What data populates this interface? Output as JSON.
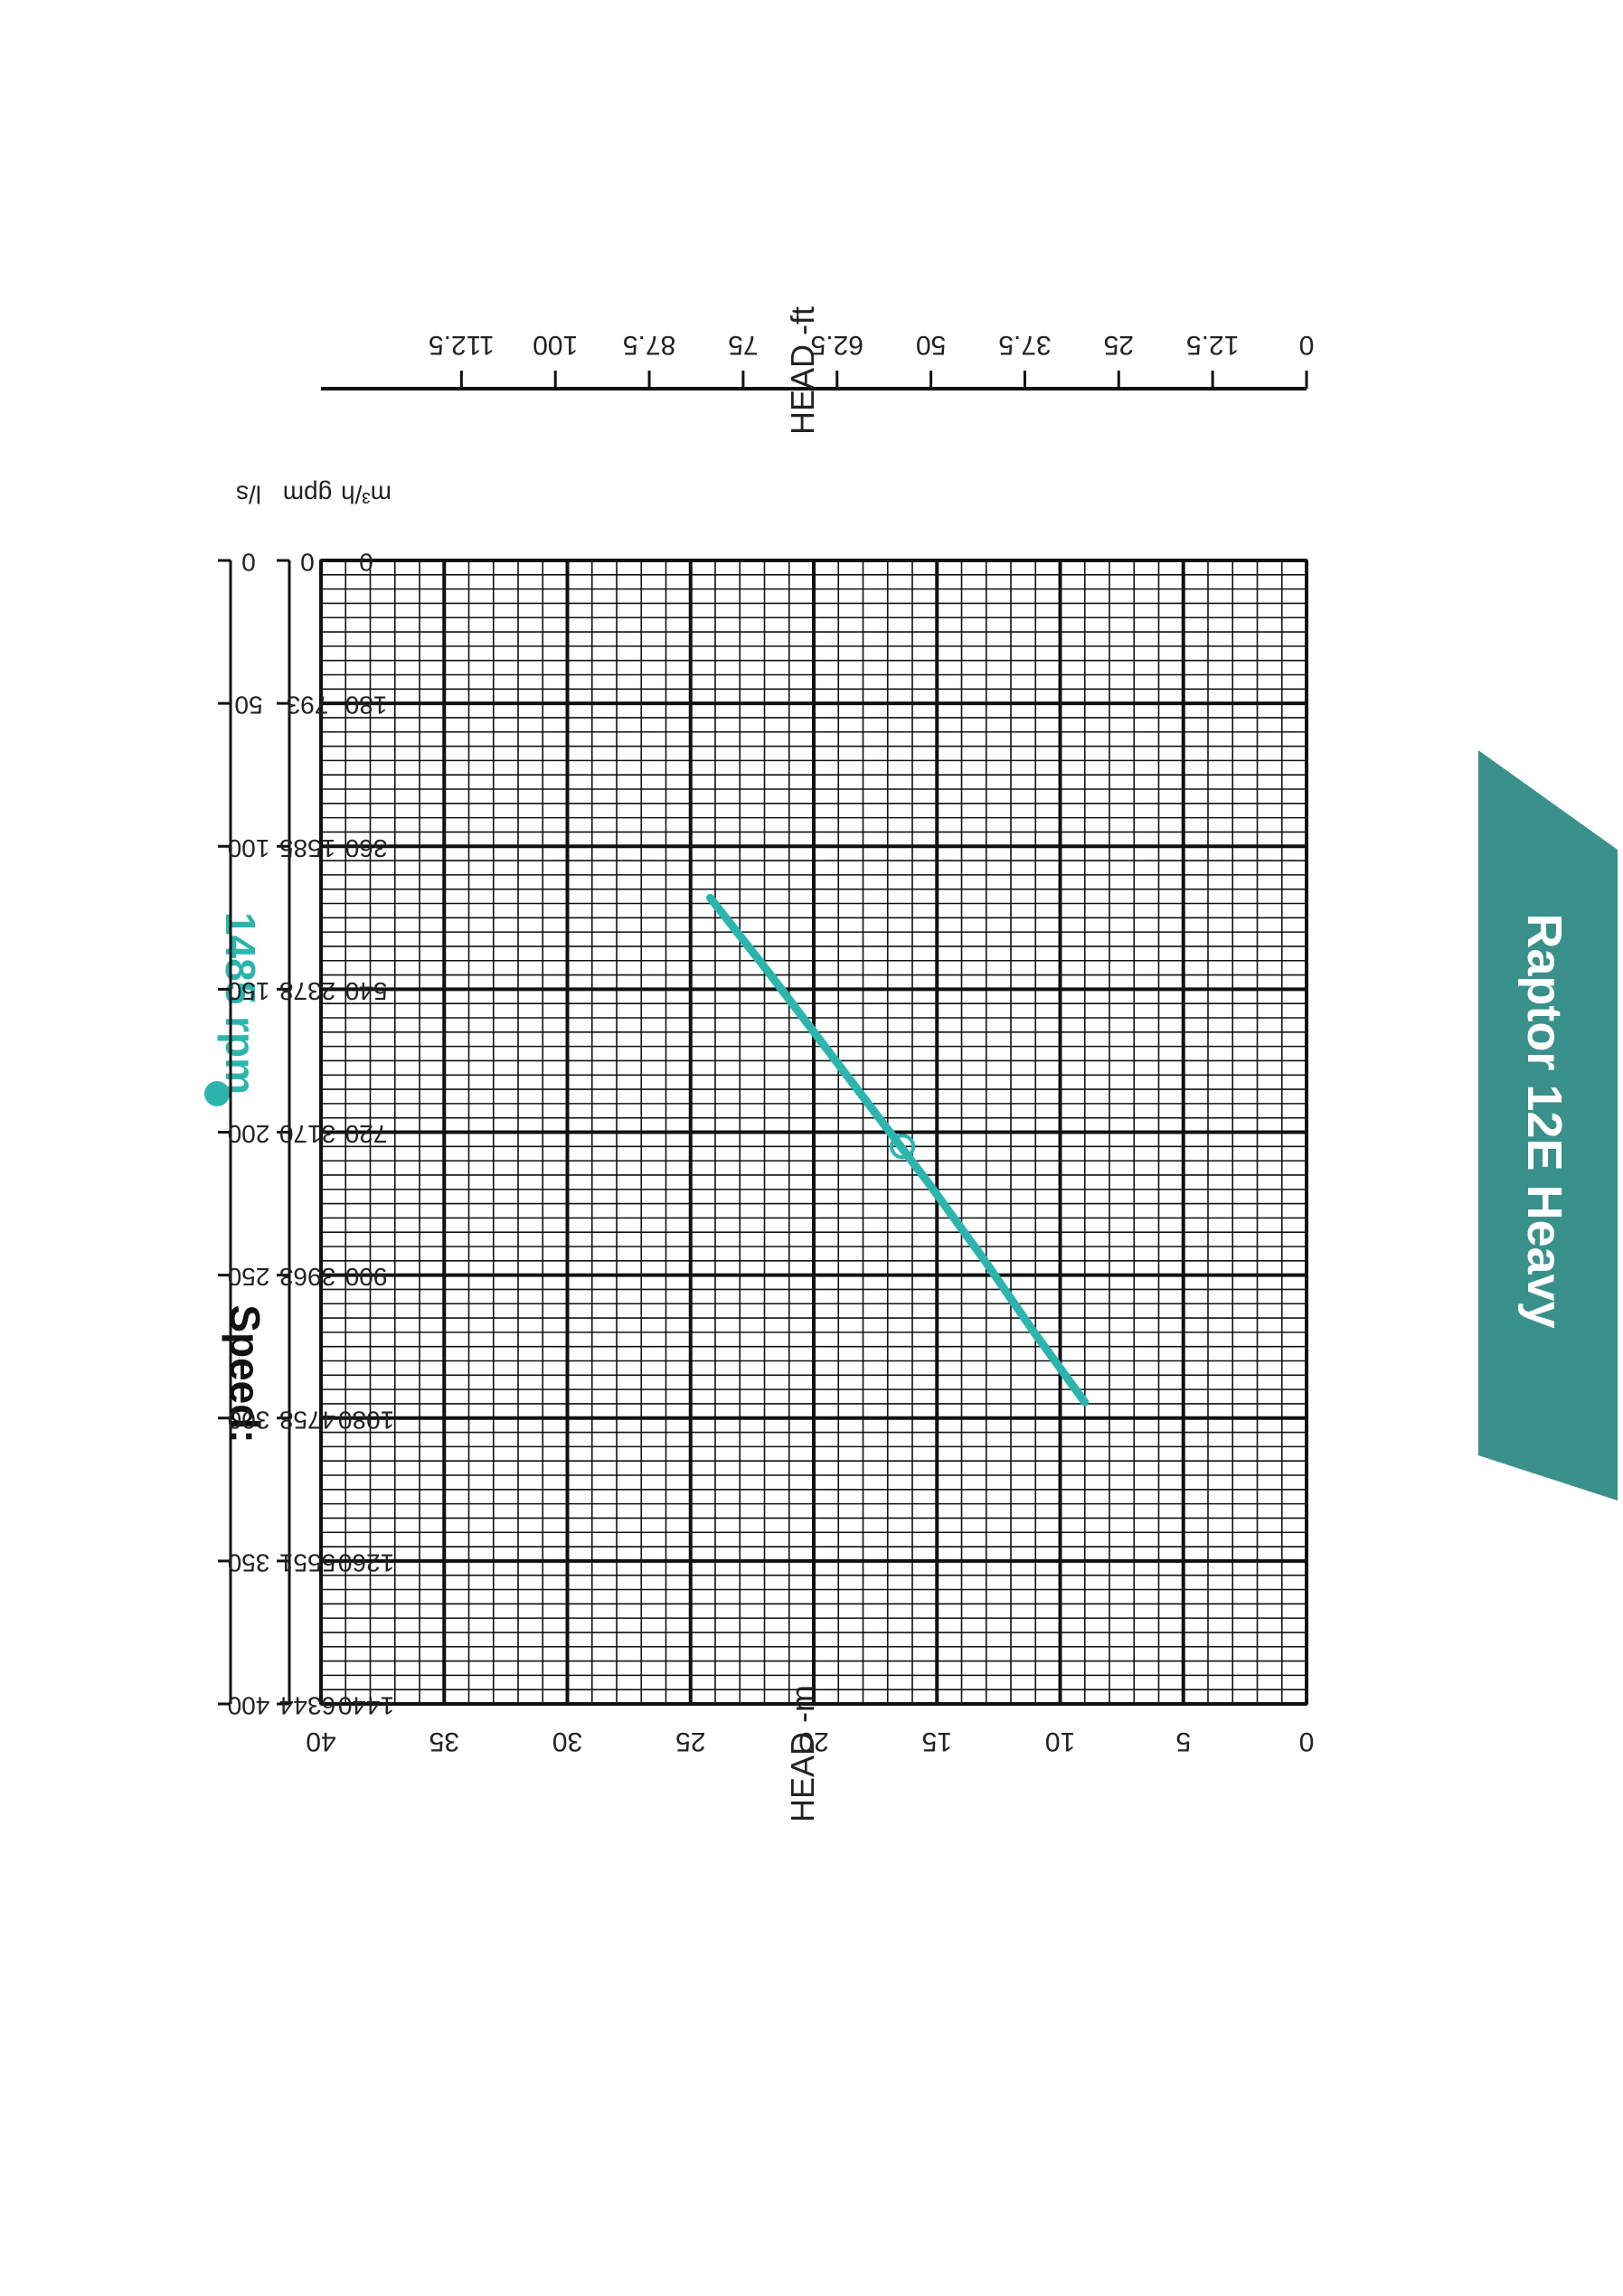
{
  "page": {
    "speed_label": "Speed:",
    "speed_value": "1485 rpm",
    "product_name": "Raptor 12E Heavy",
    "accent_color": "#2bb5ad",
    "banner_color": "#3a918b"
  },
  "chart_data": {
    "type": "line",
    "title": "",
    "xlabel": "",
    "ylabel": "HEAD -m",
    "ylabel_secondary": "HEAD -ft",
    "xlim": [
      0,
      1440
    ],
    "ylim": [
      0,
      40
    ],
    "ylim_secondary": [
      0,
      131.2
    ],
    "grid": true,
    "x_axes": [
      {
        "unit": "m³/h",
        "ticks": [
          "0",
          "180",
          "360",
          "540",
          "720",
          "900",
          "1080",
          "1260",
          "1440"
        ]
      },
      {
        "unit": "gpm",
        "ticks": [
          "0",
          "793",
          "1585",
          "2378",
          "3170",
          "3963",
          "4758",
          "5551",
          "6344"
        ]
      },
      {
        "unit": "l/s",
        "ticks": [
          "0",
          "50",
          "100",
          "150",
          "200",
          "250",
          "300",
          "350",
          "400"
        ]
      }
    ],
    "y_ticks": [
      "0",
      "5",
      "10",
      "15",
      "20",
      "25",
      "30",
      "35",
      "40"
    ],
    "y_ticks_secondary": [
      "0",
      "12.5",
      "25",
      "37.5",
      "50",
      "62.5",
      "75",
      "87.5",
      "100",
      "112.5"
    ],
    "series": [
      {
        "name": "1485 rpm",
        "color": "#2bb5ad",
        "x": [
          425,
          520,
          610,
          700,
          790,
          880,
          970,
          1060
        ],
        "y": [
          24.2,
          21.8,
          19.6,
          17.4,
          15.2,
          13.1,
          11.1,
          9.0
        ]
      }
    ],
    "marker": {
      "x": 738,
      "y": 16.4
    }
  }
}
